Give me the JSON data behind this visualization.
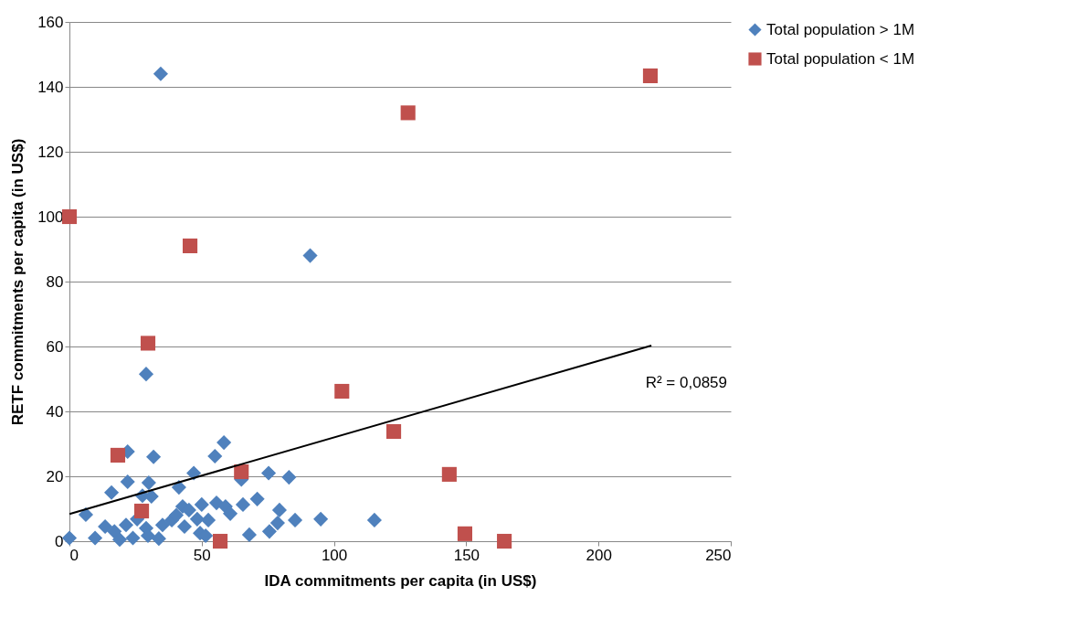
{
  "chart_data": {
    "type": "scatter",
    "xlabel": "IDA commitments per capita (in US$)",
    "ylabel": "RETF commitments per capita (in US$)",
    "xlim": [
      0,
      250
    ],
    "xticks": [
      0,
      50,
      100,
      150,
      200,
      250
    ],
    "ylim": [
      0,
      160
    ],
    "yticks": [
      0,
      20,
      40,
      60,
      80,
      100,
      120,
      140,
      160
    ],
    "grid": "y",
    "legend": "right",
    "series": [
      {
        "name": "Total population > 1M",
        "color": "#4f81bd",
        "marker": "diamond",
        "x": [
          34.5,
          91,
          29,
          0,
          6.2,
          9.7,
          13.5,
          15.9,
          17,
          19,
          21.4,
          22,
          22,
          24,
          25.6,
          27.6,
          29,
          29.7,
          30,
          31,
          31.8,
          33.8,
          35.2,
          38.7,
          40.4,
          41.4,
          42.8,
          43.5,
          45.2,
          47,
          48.3,
          49.4,
          50,
          51.5,
          52.5,
          55,
          55.6,
          58.4,
          59,
          60.8,
          65,
          65.6,
          68,
          71,
          75.3,
          75.6,
          79.4,
          78.7,
          83,
          85.3,
          95,
          115.3
        ],
        "values": [
          144,
          88,
          51.5,
          1,
          8.2,
          1,
          4.5,
          15,
          3,
          0.5,
          5,
          27.6,
          18.3,
          1,
          6.8,
          14,
          4,
          1.7,
          18,
          13.8,
          26,
          0.8,
          5,
          6.5,
          8,
          16.6,
          10.7,
          4.5,
          9.6,
          21,
          6.8,
          2.5,
          11.3,
          1.7,
          6.5,
          26.2,
          11.8,
          30.4,
          10.7,
          8.5,
          19,
          11.3,
          2,
          13,
          21,
          3,
          9.6,
          5.6,
          19.7,
          6.5,
          6.8,
          6.5
        ]
      },
      {
        "name": "Total population < 1M",
        "color": "#c0504d",
        "marker": "square",
        "x": [
          0,
          45.6,
          29.7,
          18.3,
          27.3,
          57,
          65,
          103,
          122.6,
          143.6,
          149.5,
          164.4,
          128,
          219.6
        ],
        "values": [
          100,
          91,
          61,
          26.5,
          9.3,
          0,
          21.4,
          46.2,
          33.8,
          20.6,
          2.3,
          0,
          132,
          143.4
        ]
      },
      {
        "type": "line",
        "color": "#000000",
        "x": [
          0,
          220
        ],
        "values": [
          8.4,
          60.3
        ]
      }
    ],
    "annotations": [
      "R² = 0,0859"
    ]
  }
}
